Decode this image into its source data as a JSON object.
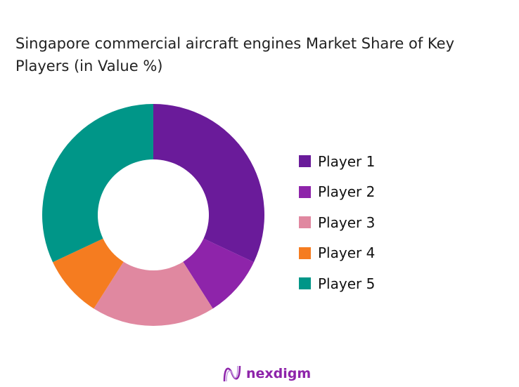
{
  "chart_data": {
    "type": "pie",
    "donut": true,
    "title": "Singapore commercial aircraft engines Market Share of Key Players (in Value %)",
    "categories": [
      "Player 1",
      "Player 2",
      "Player 3",
      "Player 4",
      "Player 5"
    ],
    "values": [
      32,
      9,
      18,
      9,
      32
    ],
    "unit": "%",
    "colors": [
      "#6a1b9a",
      "#8e24aa",
      "#e088a0",
      "#f57c20",
      "#009688"
    ],
    "legend_position": "right"
  },
  "branding": {
    "logo_text": "nexdigm",
    "logo_color": "#8e24aa"
  }
}
